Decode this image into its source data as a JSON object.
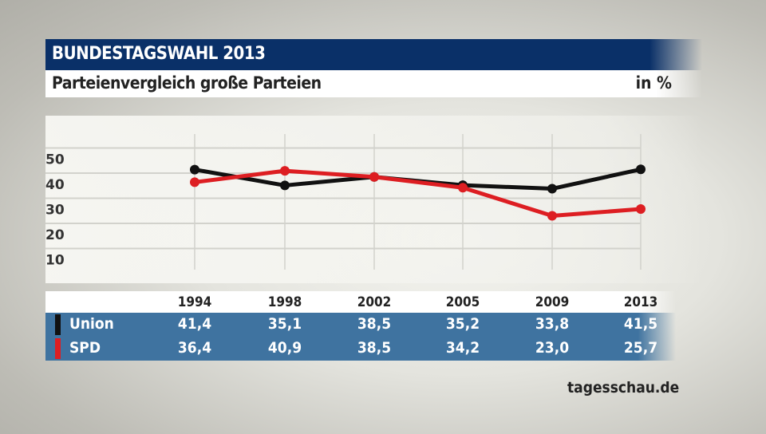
{
  "header": {
    "title": "BUNDESTAGSWAHL 2013",
    "subtitle": "Parteienvergleich große Parteien",
    "unit": "in %"
  },
  "source": "tagesschau.de",
  "chart_data": {
    "type": "line",
    "title": "BUNDESTAGSWAHL 2013",
    "subtitle": "Parteienvergleich große Parteien",
    "ylabel": "in %",
    "categories": [
      "1994",
      "1998",
      "2002",
      "2005",
      "2009",
      "2013"
    ],
    "yticks": [
      "10",
      "20",
      "30",
      "40",
      "50"
    ],
    "ylim": [
      0,
      50
    ],
    "grid": true,
    "series": [
      {
        "name": "Union",
        "color": "#111111",
        "values": [
          41.4,
          35.1,
          38.5,
          35.2,
          33.8,
          41.5
        ],
        "labels": [
          "41,4",
          "35,1",
          "38,5",
          "35,2",
          "33,8",
          "41,5"
        ]
      },
      {
        "name": "SPD",
        "color": "#dd1e22",
        "values": [
          36.4,
          40.9,
          38.5,
          34.2,
          23.0,
          25.7
        ],
        "labels": [
          "36,4",
          "40,9",
          "38,5",
          "34,2",
          "23,0",
          "25,7"
        ]
      }
    ]
  }
}
